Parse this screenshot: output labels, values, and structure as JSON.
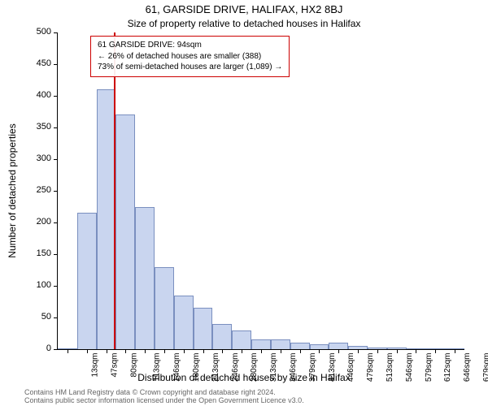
{
  "title": "61, GARSIDE DRIVE, HALIFAX, HX2 8BJ",
  "subtitle": "Size of property relative to detached houses in Halifax",
  "yaxis": {
    "label": "Number of detached properties",
    "min": 0,
    "max": 500,
    "ticks": [
      0,
      50,
      100,
      150,
      200,
      250,
      300,
      350,
      400,
      450,
      500
    ]
  },
  "xaxis": {
    "label": "Distribution of detached houses by size in Halifax",
    "tick_labels": [
      "13sqm",
      "47sqm",
      "80sqm",
      "113sqm",
      "146sqm",
      "180sqm",
      "213sqm",
      "246sqm",
      "280sqm",
      "313sqm",
      "346sqm",
      "379sqm",
      "413sqm",
      "446sqm",
      "479sqm",
      "513sqm",
      "546sqm",
      "579sqm",
      "612sqm",
      "646sqm",
      "679sqm"
    ]
  },
  "chart": {
    "type": "histogram",
    "bar_fill": "#c9d5ef",
    "bar_stroke": "#7a8fbf",
    "values": [
      0,
      215,
      410,
      370,
      225,
      130,
      85,
      65,
      40,
      30,
      15,
      15,
      10,
      8,
      10,
      5,
      3,
      2,
      0,
      0,
      0
    ],
    "background_color": "#ffffff",
    "marker": {
      "value_sqm": 94,
      "line_color": "#cc0000",
      "line_width": 2
    }
  },
  "annotation": {
    "line1": "61 GARSIDE DRIVE: 94sqm",
    "line2": "← 26% of detached houses are smaller (388)",
    "line3": "73% of semi-detached houses are larger (1,089) →",
    "border_color": "#cc0000"
  },
  "footnote": {
    "line1": "Contains HM Land Registry data © Crown copyright and database right 2024.",
    "line2": "Contains public sector information licensed under the Open Government Licence v3.0."
  }
}
